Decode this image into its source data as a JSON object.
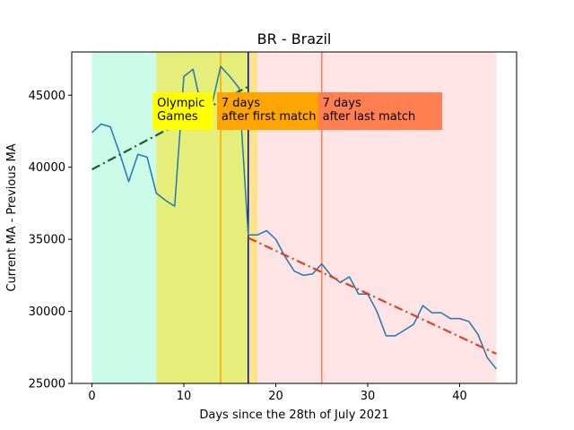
{
  "chart_data": {
    "type": "line",
    "title": "BR - Brazil",
    "xlabel": "Days since the 28th of July 2021",
    "ylabel": "Current MA - Previous MA",
    "xlim": [
      -2.2,
      46.2
    ],
    "ylim": [
      25000,
      48000
    ],
    "xticks": [
      0,
      10,
      20,
      30,
      40
    ],
    "yticks": [
      25000,
      30000,
      35000,
      40000,
      45000
    ],
    "grid": false,
    "series": [
      {
        "color": "#1f77b4",
        "x": [
          0,
          1,
          2,
          3,
          4,
          5,
          6,
          7,
          8,
          9,
          10,
          11,
          12,
          13,
          14,
          15,
          16,
          17,
          18,
          19,
          20,
          21,
          22,
          23,
          24,
          25,
          26,
          27,
          28,
          29,
          30,
          31,
          32,
          33,
          34,
          35,
          36,
          37,
          38,
          39,
          40,
          41,
          42,
          43,
          44
        ],
        "y": [
          42400,
          43000,
          42800,
          41000,
          39000,
          40900,
          40700,
          38200,
          37700,
          37300,
          46300,
          46800,
          43900,
          44200,
          47000,
          46300,
          45500,
          35300,
          35300,
          35600,
          35000,
          33800,
          32800,
          32500,
          32600,
          33300,
          32500,
          32000,
          32400,
          31200,
          31200,
          30000,
          28300,
          28300,
          28700,
          29100,
          30400,
          29900,
          29900,
          29500,
          29500,
          29300,
          28400,
          26800,
          26000
        ]
      }
    ],
    "trendlines": [
      {
        "color": "#1a5f2a",
        "x": [
          0,
          17
        ],
        "y": [
          39850,
          45600
        ]
      },
      {
        "color": "#d8432a",
        "x": [
          17,
          44
        ],
        "y": [
          35100,
          27050
        ]
      }
    ],
    "shaded_regions": [
      {
        "x0": 0,
        "x1": 7,
        "color": "#ccfbea"
      },
      {
        "x0": 7,
        "x1": 17,
        "color": "#e6ee7a"
      },
      {
        "x0": 17,
        "x1": 18,
        "color": "#fde38c"
      },
      {
        "x0": 18,
        "x1": 44,
        "color": "#fee4e4"
      }
    ],
    "vertical_lines": [
      {
        "x": 14,
        "color": "#ffa500"
      },
      {
        "x": 17,
        "color": "#0000aa"
      },
      {
        "x": 25,
        "color": "#ff7f50"
      }
    ],
    "annotations": [
      {
        "lines": [
          "Olympic",
          "Games"
        ],
        "x": 6.6,
        "y": 45200,
        "bg": "#ffff00"
      },
      {
        "lines": [
          "7 days",
          "after first match"
        ],
        "x": 13.6,
        "y": 45200,
        "bg": "#ffa500"
      },
      {
        "lines": [
          "7 days",
          "after last match"
        ],
        "x": 24.6,
        "y": 45200,
        "bg": "#ff7f50"
      }
    ]
  }
}
